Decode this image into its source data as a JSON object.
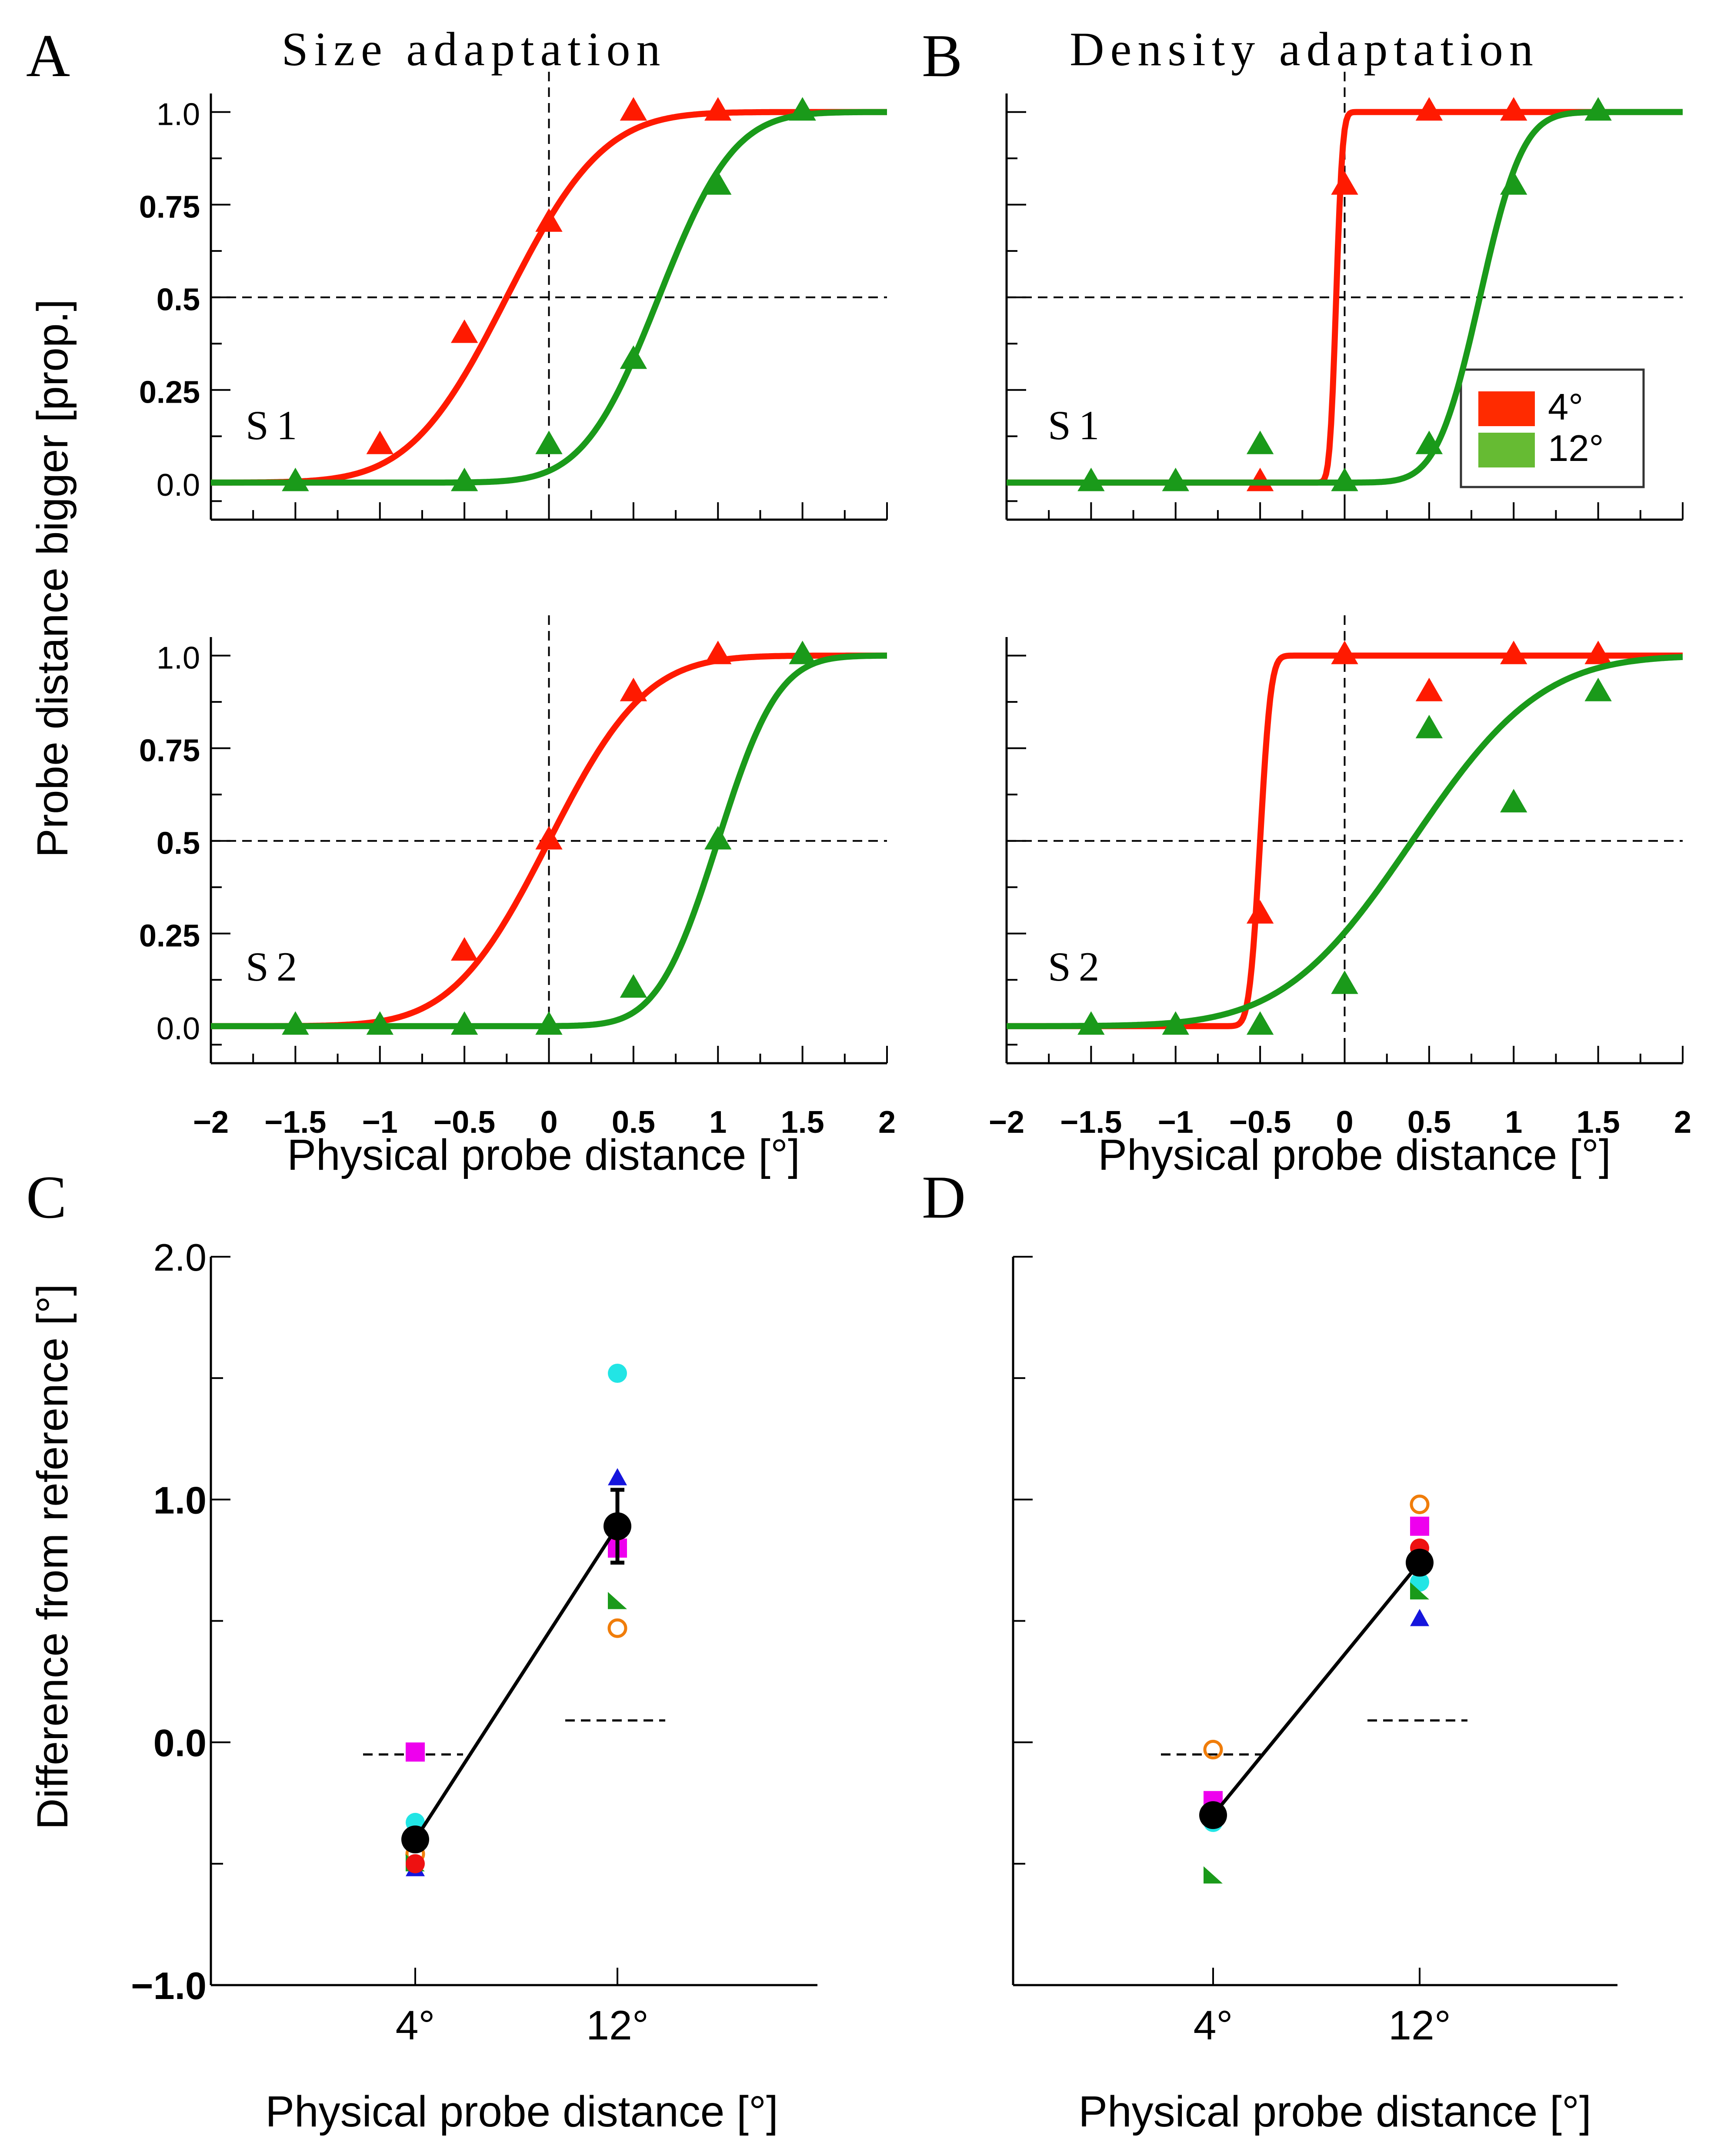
{
  "panels": [
    {
      "letter": "A",
      "title": "Size adaptation"
    },
    {
      "letter": "B",
      "title": "Density adaptation"
    },
    {
      "letter": "C"
    },
    {
      "letter": "D"
    }
  ],
  "axis_labels": {
    "psych_y": "Probe distance bigger [prop.]",
    "psych_x": "Physical probe distance [°]",
    "diff_y": "Difference from reference [°]",
    "diff_x": "Physical probe distance [°]"
  },
  "psych_axis": {
    "x_range": [
      -2,
      2
    ],
    "x_ticks": [
      -2,
      -1.5,
      -1,
      -0.5,
      0,
      0.5,
      1,
      1.5,
      2
    ],
    "x_tick_labels": [
      "−2",
      "−1.5",
      "−1",
      "−0.5",
      "0",
      "0.5",
      "1",
      "1.5",
      "2"
    ],
    "y_range": [
      -0.1,
      1.05
    ],
    "y_ticks": [
      0,
      0.25,
      0.5,
      0.75,
      1.0
    ],
    "y_tick_labels": [
      "0.0",
      "0.25",
      "0.5",
      "0.75",
      "1.0"
    ]
  },
  "diff_axis": {
    "y_range": [
      -1.0,
      2.0
    ],
    "y_ticks": [
      -1.0,
      0.0,
      1.0,
      2.0
    ],
    "y_tick_labels": [
      "−1.0",
      "0.0",
      "1.0",
      "2.0"
    ],
    "categories": [
      "4°",
      "12°"
    ]
  },
  "legend": [
    {
      "label": "4°",
      "color": "#ff2b00"
    },
    {
      "label": "12°",
      "color": "#66bb33"
    }
  ],
  "colors": {
    "red": "#ff1a00",
    "green": "#1a9a1a"
  },
  "chart_data": [
    {
      "id": "A-S1",
      "type": "scatter",
      "panel": "A",
      "subject": "S1",
      "series": [
        {
          "name": "4°",
          "color": "red",
          "mu": -0.25,
          "sigma": 0.45,
          "points": [
            [
              -1,
              0.1
            ],
            [
              -0.5,
              0.4
            ],
            [
              0,
              0.7
            ],
            [
              0.5,
              1.0
            ],
            [
              1,
              1.0
            ]
          ]
        },
        {
          "name": "12°",
          "color": "green",
          "mu": 0.65,
          "sigma": 0.35,
          "points": [
            [
              -1.5,
              0.0
            ],
            [
              -0.5,
              0.0
            ],
            [
              0,
              0.1
            ],
            [
              0.5,
              0.33
            ],
            [
              1,
              0.8
            ],
            [
              1.5,
              1.0
            ]
          ]
        }
      ]
    },
    {
      "id": "B-S1",
      "type": "scatter",
      "panel": "B",
      "subject": "S1",
      "series": [
        {
          "name": "4°",
          "color": "red",
          "mu": -0.05,
          "sigma": 0.03,
          "points": [
            [
              -0.5,
              0.0
            ],
            [
              0,
              0.8
            ],
            [
              0.5,
              1.0
            ],
            [
              1,
              1.0
            ]
          ]
        },
        {
          "name": "12°",
          "color": "green",
          "mu": 0.8,
          "sigma": 0.2,
          "points": [
            [
              -1.5,
              0.0
            ],
            [
              -1,
              0.0
            ],
            [
              -0.5,
              0.1
            ],
            [
              0,
              0.0
            ],
            [
              0.5,
              0.1
            ],
            [
              1,
              0.8
            ],
            [
              1.5,
              1.0
            ]
          ]
        }
      ]
    },
    {
      "id": "A-S2",
      "type": "scatter",
      "panel": "A",
      "subject": "S2",
      "series": [
        {
          "name": "4°",
          "color": "red",
          "mu": 0.0,
          "sigma": 0.45,
          "points": [
            [
              -0.5,
              0.2
            ],
            [
              0,
              0.5
            ],
            [
              0.5,
              0.9
            ],
            [
              1,
              1.0
            ]
          ]
        },
        {
          "name": "12°",
          "color": "green",
          "mu": 1.0,
          "sigma": 0.28,
          "points": [
            [
              -1.5,
              0.0
            ],
            [
              -1,
              0.0
            ],
            [
              -0.5,
              0.0
            ],
            [
              0,
              0.0
            ],
            [
              0.5,
              0.1
            ],
            [
              1,
              0.5
            ],
            [
              1.5,
              1.0
            ]
          ]
        }
      ]
    },
    {
      "id": "B-S2",
      "type": "scatter",
      "panel": "B",
      "subject": "S2",
      "series": [
        {
          "name": "4°",
          "color": "red",
          "mu": -0.5,
          "sigma": 0.05,
          "points": [
            [
              -0.5,
              0.3
            ],
            [
              0,
              1.0
            ],
            [
              0.5,
              0.9
            ],
            [
              1,
              1.0
            ],
            [
              1.5,
              1.0
            ]
          ]
        },
        {
          "name": "12°",
          "color": "green",
          "mu": 0.4,
          "sigma": 0.6,
          "points": [
            [
              -1.5,
              0.0
            ],
            [
              -1,
              0.0
            ],
            [
              -0.5,
              0.0
            ],
            [
              0,
              0.11
            ],
            [
              0.5,
              0.8
            ],
            [
              1,
              0.6
            ],
            [
              1.5,
              0.9
            ]
          ]
        }
      ]
    },
    {
      "id": "C",
      "type": "scatter",
      "panel": "C",
      "mean_line": [
        {
          "x": "4°",
          "y": -0.4
        },
        {
          "x": "12°",
          "y": 0.89
        }
      ],
      "mean_error": [
        {
          "x": "12°",
          "low": 0.74,
          "high": 1.04
        }
      ],
      "reference_dashes": [
        {
          "x": "4°",
          "y": -0.05
        },
        {
          "x": "12°",
          "y": 0.09
        }
      ],
      "subjects": [
        {
          "marker": "circle",
          "color": "#22e5e5",
          "values": [
            -0.33,
            1.52
          ]
        },
        {
          "marker": "triangle",
          "color": "#1515dd",
          "values": [
            -0.52,
            1.09
          ]
        },
        {
          "marker": "square",
          "color": "#ee00ee",
          "values": [
            -0.04,
            0.8
          ]
        },
        {
          "marker": "open-circle",
          "color": "#f07d0a",
          "values": [
            -0.46,
            0.47
          ]
        },
        {
          "marker": "half-triangle",
          "color": "#1a9a1a",
          "values": [
            -0.5,
            0.58
          ]
        },
        {
          "marker": "circle",
          "color": "#ee1111",
          "values": [
            -0.5,
            0.87
          ]
        }
      ]
    },
    {
      "id": "D",
      "type": "scatter",
      "panel": "D",
      "mean_line": [
        {
          "x": "4°",
          "y": -0.3
        },
        {
          "x": "12°",
          "y": 0.74
        }
      ],
      "reference_dashes": [
        {
          "x": "4°",
          "y": -0.05
        },
        {
          "x": "12°",
          "y": 0.09
        }
      ],
      "subjects": [
        {
          "marker": "open-circle",
          "color": "#f07d0a",
          "values": [
            -0.03,
            0.98
          ]
        },
        {
          "marker": "square",
          "color": "#ee00ee",
          "values": [
            -0.24,
            0.89
          ]
        },
        {
          "marker": "circle",
          "color": "#ee1111",
          "values": [
            -0.3,
            0.8
          ]
        },
        {
          "marker": "circle",
          "color": "#22e5e5",
          "values": [
            -0.33,
            0.66
          ]
        },
        {
          "marker": "half-triangle",
          "color": "#1a9a1a",
          "values": [
            -0.55,
            0.62
          ]
        },
        {
          "marker": "triangle",
          "color": "#1515dd",
          "values": [
            -0.3,
            0.51
          ]
        }
      ]
    }
  ]
}
